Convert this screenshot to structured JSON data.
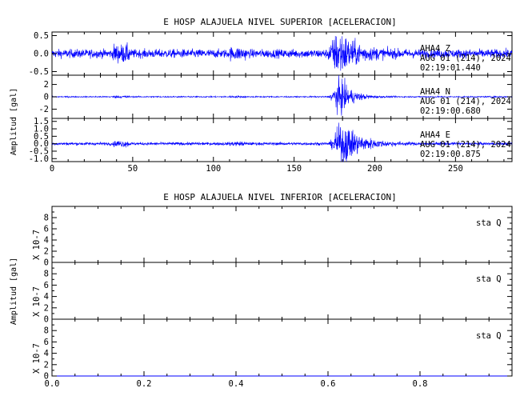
{
  "chart_data": [
    {
      "type": "line",
      "title": "E HOSP ALAJUELA NIVEL SUPERIOR [ACELERACION]",
      "ylabel": "Amplitud [gal]",
      "xlim": [
        0,
        285
      ],
      "xticks": [
        0,
        50,
        100,
        150,
        200,
        250
      ],
      "series": [
        {
          "name": "AHA4  Z",
          "date": "AUG 01 (214), 2024",
          "time": "02:19:01.440",
          "ylim": [
            -0.6,
            0.6
          ],
          "yticks": [
            "0.5",
            "0.0",
            "-0.5"
          ],
          "ytick_values": [
            0.5,
            0.0,
            -0.5
          ],
          "noise": 0.06,
          "arrival": 170,
          "peak": 0.55,
          "peak_time": 178,
          "decay": 10
        },
        {
          "name": "AHA4  N",
          "date": "AUG 01 (214), 2024",
          "time": "02:19:00.680",
          "ylim": [
            -3.5,
            3.5
          ],
          "yticks": [
            "2",
            "0",
            "-2"
          ],
          "ytick_values": [
            2,
            0,
            -2
          ],
          "noise": 0.05,
          "arrival": 172,
          "peak": 3.0,
          "peak_time": 178,
          "decay": 7
        },
        {
          "name": "AHA4  E",
          "date": "AUG 01 (214), 2024",
          "time": "02:19:00.875",
          "ylim": [
            -1.2,
            1.7
          ],
          "yticks": [
            "1.5",
            "1.0",
            "0.5",
            "0.0",
            "-0.5",
            "-1.0"
          ],
          "ytick_values": [
            1.5,
            1.0,
            0.5,
            0.0,
            -0.5,
            -1.0
          ],
          "noise": 0.05,
          "arrival": 172,
          "peak": 1.4,
          "peak_time": 180,
          "decay": 10
        }
      ]
    },
    {
      "type": "line",
      "title": "E HOSP ALAJUELA NIVEL INFERIOR [ACELERACION]",
      "ylabel": "Amplitud [gal]",
      "xlim": [
        0,
        1
      ],
      "xticks": [
        "0.0",
        "0.2",
        "0.4",
        "0.6",
        "0.8"
      ],
      "xtick_values": [
        0.0,
        0.2,
        0.4,
        0.6,
        0.8
      ],
      "series": [
        {
          "name": "sta  Q",
          "scale_label": "X 10-7",
          "ylim": [
            0,
            10
          ],
          "yticks": [
            "8",
            "6",
            "4",
            "2",
            "0"
          ],
          "ytick_values": [
            8,
            6,
            4,
            2,
            0
          ],
          "values": [
            0,
            0
          ]
        },
        {
          "name": "sta  Q",
          "scale_label": "X 10-7",
          "ylim": [
            0,
            10
          ],
          "yticks": [
            "8",
            "6",
            "4",
            "2",
            "0"
          ],
          "ytick_values": [
            8,
            6,
            4,
            2,
            0
          ],
          "values": [
            0,
            0
          ]
        },
        {
          "name": "sta  Q",
          "scale_label": "X 10-7",
          "ylim": [
            0,
            10
          ],
          "yticks": [
            "8",
            "6",
            "4",
            "2",
            "0"
          ],
          "ytick_values": [
            8,
            6,
            4,
            2,
            0
          ],
          "values": [
            0,
            0
          ]
        }
      ]
    }
  ]
}
